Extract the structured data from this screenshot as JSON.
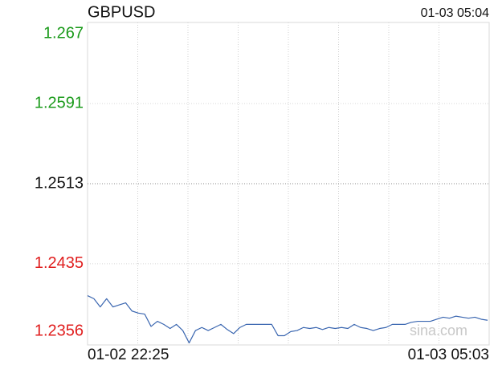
{
  "chart_data": {
    "type": "line",
    "title": "GBPUSD",
    "timestamp": "01-03 05:04",
    "watermark": "sina.com",
    "color": "#3a66b0",
    "ylim": [
      1.2356,
      1.267
    ],
    "yticks": [
      1.267,
      1.2591,
      1.2513,
      1.2435,
      1.2356
    ],
    "ytick_colors": [
      "#1a9a1a",
      "#1a9a1a",
      "#111111",
      "#e01e1e",
      "#e01e1e"
    ],
    "grid": true,
    "categories": [
      "01-02 22:25",
      null,
      null,
      null,
      null,
      null,
      null,
      null,
      null,
      null,
      null,
      null,
      null,
      null,
      null,
      null,
      null,
      null,
      null,
      null,
      null,
      null,
      null,
      null,
      null,
      null,
      null,
      null,
      null,
      null,
      null,
      null,
      null,
      null,
      null,
      null,
      null,
      null,
      null,
      null,
      null,
      null,
      null,
      null,
      null,
      null,
      null,
      null,
      null,
      null,
      null,
      null,
      null,
      null,
      null,
      null,
      null,
      null,
      null,
      null,
      null,
      null,
      null,
      "01-03 05:03"
    ],
    "values": [
      1.2404,
      1.2401,
      1.2393,
      1.2401,
      1.2393,
      1.2395,
      1.2397,
      1.2389,
      1.2387,
      1.2386,
      1.2374,
      1.2379,
      1.2376,
      1.2372,
      1.2376,
      1.237,
      1.2358,
      1.237,
      1.2373,
      1.237,
      1.2373,
      1.2376,
      1.2371,
      1.2367,
      1.2373,
      1.2376,
      1.2376,
      1.2376,
      1.2376,
      1.2376,
      1.2365,
      1.2365,
      1.2369,
      1.237,
      1.2373,
      1.2372,
      1.2373,
      1.2371,
      1.2373,
      1.2372,
      1.2373,
      1.2372,
      1.2376,
      1.2373,
      1.2372,
      1.237,
      1.2372,
      1.2373,
      1.2376,
      1.2376,
      1.2376,
      1.2378,
      1.2379,
      1.2379,
      1.2379,
      1.2381,
      1.2383,
      1.2382,
      1.2384,
      1.2383,
      1.2382,
      1.2383,
      1.2381,
      1.238
    ]
  }
}
